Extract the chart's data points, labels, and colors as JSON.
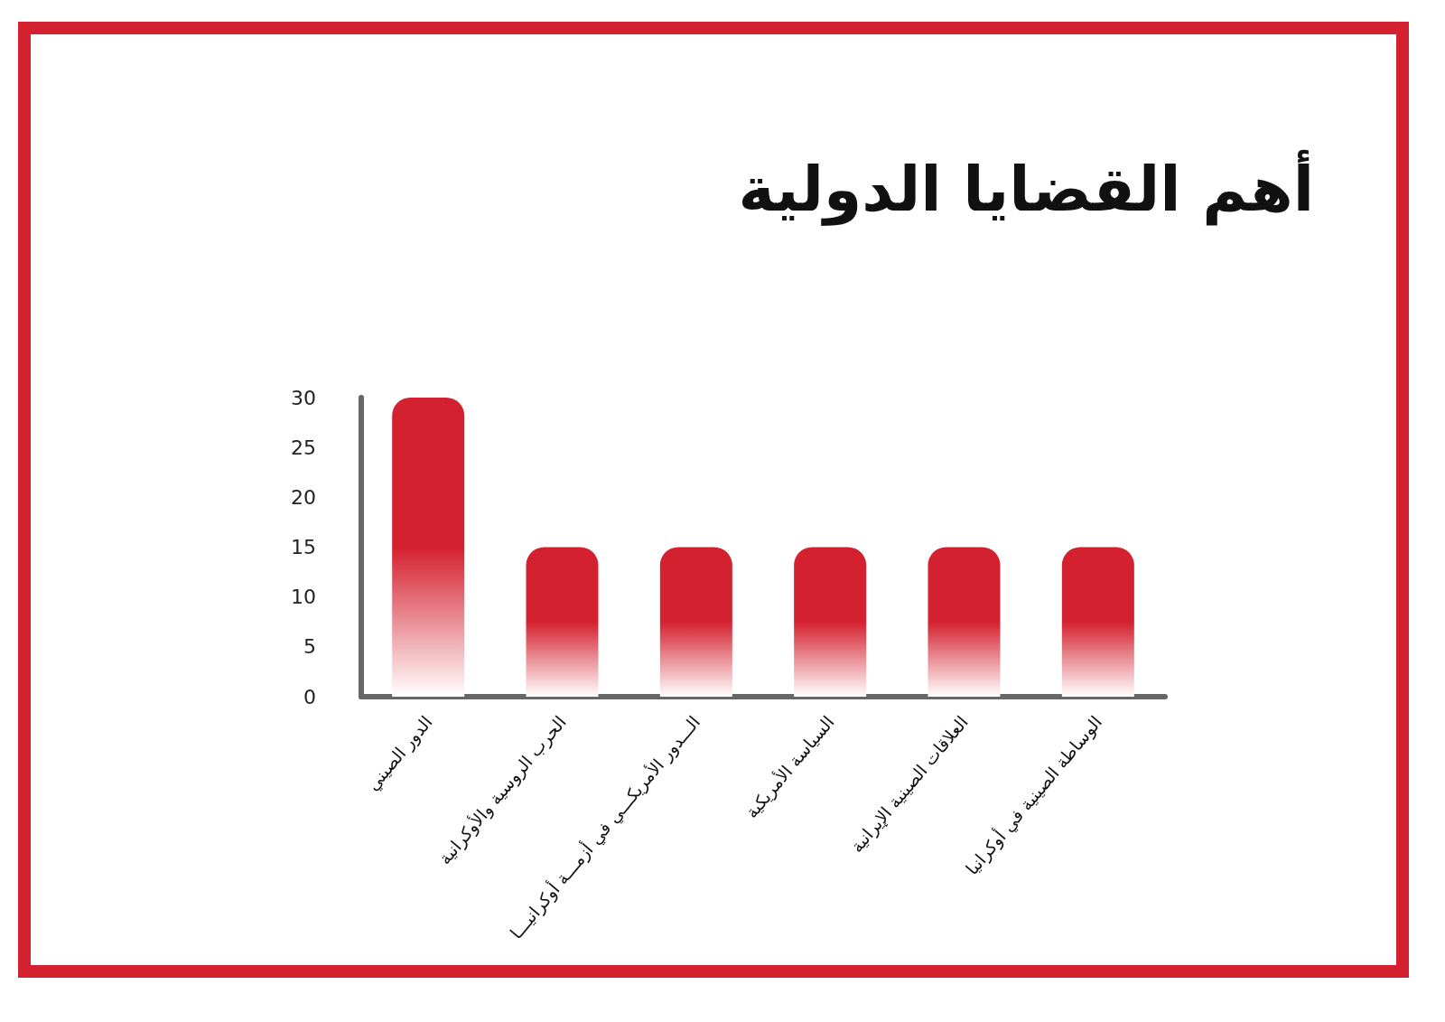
{
  "chart_data": {
    "type": "bar",
    "title": "أهم القضايا الدولية",
    "categories": [
      "الدور الصيني",
      "الحرب الروسية والأوكرانية",
      "الـــدور الأمريكـــي في أزمـــة أوكرانيـــا",
      "السياسة الأمريكية",
      "العلاقات الصينية الإيرانية",
      "الوساطة الصينية في أوكرانيا"
    ],
    "values": [
      30,
      15,
      15,
      15,
      15,
      15
    ],
    "color": "#d4212f",
    "ylim": [
      0,
      30
    ],
    "yticks": [
      0,
      5,
      10,
      15,
      20,
      25,
      30
    ]
  }
}
